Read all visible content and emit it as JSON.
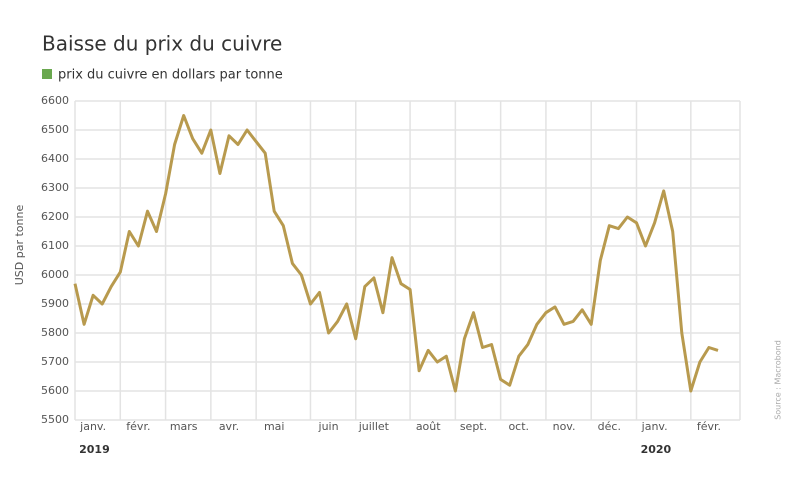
{
  "chart_data": {
    "type": "line",
    "title": "Baisse du prix du cuivre",
    "y_label": "USD par tonne",
    "source": "Source : Macrobond",
    "categories": [
      null,
      null,
      "janv.",
      null,
      null,
      null,
      null,
      "févr.",
      null,
      null,
      null,
      null,
      "mars",
      null,
      null,
      null,
      null,
      "avr.",
      null,
      null,
      null,
      null,
      "mai",
      null,
      null,
      null,
      null,
      null,
      "juin",
      null,
      null,
      null,
      null,
      "juillet",
      null,
      null,
      null,
      null,
      null,
      "août",
      null,
      null,
      null,
      null,
      "sept.",
      null,
      null,
      null,
      null,
      "oct.",
      null,
      null,
      null,
      null,
      "nov.",
      null,
      null,
      null,
      null,
      "déc.",
      null,
      null,
      null,
      null,
      "janv.",
      null,
      null,
      null,
      null,
      null,
      "févr.",
      null
    ],
    "year_labels": [
      {
        "label": "2019",
        "index": 2
      },
      {
        "label": "2020",
        "index": 64
      }
    ],
    "series": [
      {
        "name": "prix du cuivre en dollars par tonne",
        "color": "#b89a4e",
        "legend_color": "#6aa84f",
        "values": [
          5970,
          5830,
          5930,
          5900,
          5960,
          6010,
          6150,
          6100,
          6220,
          6150,
          6280,
          6450,
          6550,
          6470,
          6420,
          6500,
          6350,
          6480,
          6450,
          6500,
          6460,
          6420,
          6220,
          6170,
          6040,
          6000,
          5900,
          5940,
          5800,
          5840,
          5900,
          5780,
          5960,
          5990,
          5870,
          6060,
          5970,
          5950,
          5670,
          5740,
          5700,
          5720,
          5600,
          5780,
          5870,
          5750,
          5760,
          5640,
          5620,
          5720,
          5760,
          5830,
          5870,
          5890,
          5830,
          5840,
          5880,
          5830,
          6050,
          6170,
          6160,
          6200,
          6180,
          6100,
          6180,
          6290,
          6150,
          5800,
          5600,
          5700,
          5750,
          5740
        ]
      }
    ],
    "ylim": [
      5500,
      6600
    ],
    "yticks": [
      5500,
      5600,
      5700,
      5800,
      5900,
      6000,
      6100,
      6200,
      6300,
      6400,
      6500,
      6600
    ],
    "grid": true
  }
}
